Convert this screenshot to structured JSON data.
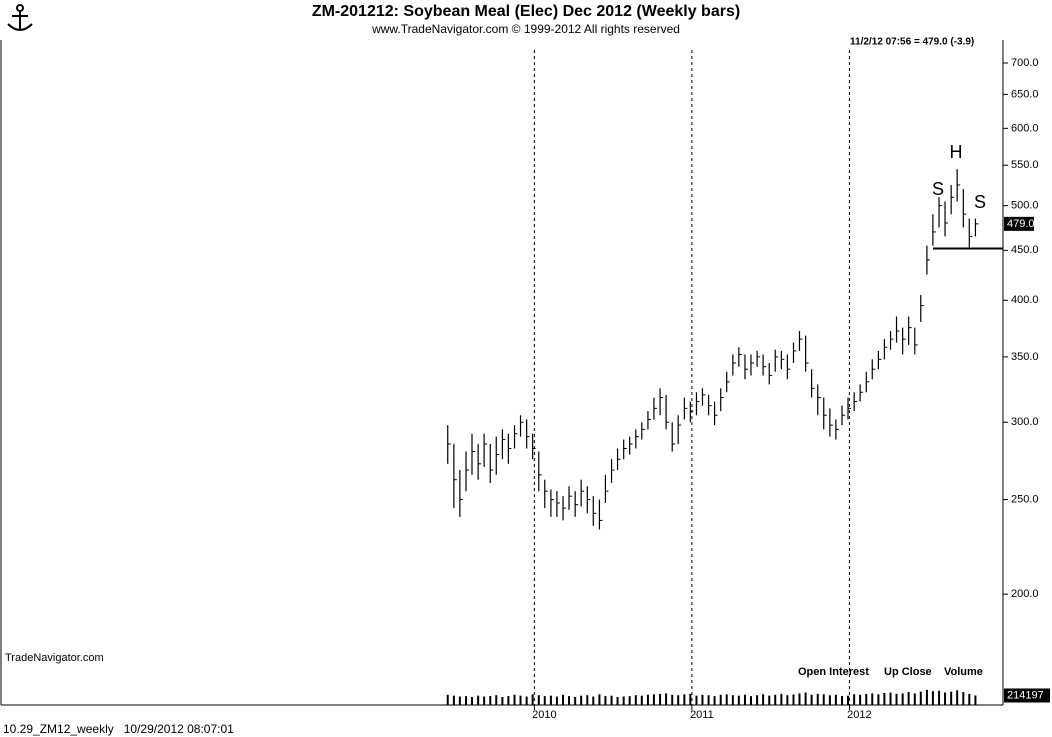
{
  "chart_data": {
    "type": "ohlc",
    "title": "ZM-201212:  Soybean Meal (Elec) Dec 2012  (Weekly bars)",
    "subtitle": "www.TradeNavigator.com © 1999-2012 All rights reserved",
    "quote": "11/2/12 07:56 = 479.0 (-3.9)",
    "last_price_label": "479.0",
    "watermark": "TradeNavigator.com",
    "footer": "10.29_ZM12_weekly   10/29/2012 08:07:01",
    "legend": [
      "Open Interest",
      "Up Close",
      "Volume"
    ],
    "annotations": [
      "S",
      "H",
      "S"
    ],
    "neckline": 452,
    "log_scale": true,
    "x_grid": true,
    "color": "#000000",
    "xlim": [
      2006.614,
      2012.975
    ],
    "xticks": [
      2010,
      2011,
      2012
    ],
    "ylim": [
      154,
      739
    ],
    "yticks": [
      {
        "value": 200,
        "label": "200.0"
      },
      {
        "value": 250,
        "label": "250.0"
      },
      {
        "value": 300,
        "label": "300.0"
      },
      {
        "value": 350,
        "label": "350.0"
      },
      {
        "value": 400,
        "label": "400.0"
      },
      {
        "value": 450,
        "label": "450.0"
      },
      {
        "value": 500,
        "label": "500.0"
      },
      {
        "value": 550,
        "label": "550.0"
      },
      {
        "value": 600,
        "label": "600.0"
      },
      {
        "value": 650,
        "label": "650.0"
      },
      {
        "value": 700,
        "label": "700.0"
      }
    ],
    "x": [
      2009.45,
      2009.489,
      2009.527,
      2009.566,
      2009.604,
      2009.643,
      2009.681,
      2009.72,
      2009.758,
      2009.797,
      2009.835,
      2009.874,
      2009.912,
      2009.951,
      2009.989,
      2010.028,
      2010.066,
      2010.105,
      2010.143,
      2010.182,
      2010.22,
      2010.259,
      2010.297,
      2010.336,
      2010.374,
      2010.413,
      2010.451,
      2010.49,
      2010.528,
      2010.567,
      2010.605,
      2010.644,
      2010.682,
      2010.721,
      2010.759,
      2010.798,
      2010.836,
      2010.875,
      2010.913,
      2010.952,
      2010.99,
      2011.029,
      2011.067,
      2011.106,
      2011.144,
      2011.183,
      2011.221,
      2011.26,
      2011.298,
      2011.337,
      2011.375,
      2011.414,
      2011.452,
      2011.491,
      2011.529,
      2011.568,
      2011.606,
      2011.645,
      2011.683,
      2011.722,
      2011.76,
      2011.799,
      2011.837,
      2011.876,
      2011.914,
      2011.953,
      2011.991,
      2012.03,
      2012.068,
      2012.107,
      2012.145,
      2012.184,
      2012.222,
      2012.261,
      2012.299,
      2012.338,
      2012.376,
      2012.415,
      2012.453,
      2012.492,
      2012.53,
      2012.569,
      2012.607,
      2012.646,
      2012.684,
      2012.723,
      2012.761,
      2012.8
    ],
    "high": [
      298,
      285,
      268,
      280,
      292,
      285,
      292,
      285,
      290,
      295,
      292,
      298,
      305,
      302,
      292,
      280,
      262,
      256,
      255,
      252,
      258,
      255,
      262,
      258,
      252,
      250,
      265,
      275,
      282,
      288,
      290,
      295,
      300,
      308,
      318,
      325,
      320,
      300,
      305,
      318,
      315,
      322,
      325,
      320,
      315,
      325,
      338,
      352,
      358,
      352,
      352,
      355,
      352,
      345,
      356,
      355,
      352,
      362,
      372,
      368,
      340,
      328,
      318,
      310,
      302,
      312,
      318,
      322,
      328,
      338,
      348,
      355,
      365,
      372,
      385,
      375,
      385,
      375,
      405,
      455,
      490,
      510,
      505,
      525,
      545,
      520,
      485,
      485
    ],
    "low": [
      272,
      245,
      240,
      255,
      265,
      262,
      270,
      260,
      265,
      275,
      272,
      282,
      290,
      282,
      275,
      255,
      245,
      240,
      240,
      238,
      244,
      240,
      246,
      242,
      235,
      233,
      248,
      260,
      268,
      275,
      278,
      282,
      288,
      295,
      302,
      305,
      295,
      280,
      285,
      302,
      300,
      305,
      312,
      305,
      298,
      308,
      322,
      335,
      342,
      332,
      335,
      342,
      335,
      328,
      338,
      340,
      332,
      345,
      355,
      338,
      318,
      305,
      295,
      290,
      288,
      298,
      302,
      308,
      315,
      322,
      332,
      340,
      348,
      356,
      362,
      352,
      360,
      352,
      380,
      425,
      455,
      475,
      465,
      490,
      505,
      475,
      452,
      465
    ],
    "close": [
      285,
      262,
      250,
      268,
      280,
      272,
      285,
      268,
      278,
      288,
      282,
      292,
      300,
      290,
      282,
      265,
      255,
      250,
      248,
      245,
      252,
      247,
      255,
      250,
      242,
      238,
      255,
      268,
      275,
      282,
      285,
      290,
      295,
      302,
      310,
      318,
      300,
      285,
      298,
      310,
      308,
      315,
      320,
      312,
      305,
      318,
      330,
      345,
      352,
      340,
      345,
      350,
      342,
      335,
      350,
      348,
      340,
      355,
      365,
      345,
      325,
      318,
      305,
      298,
      295,
      305,
      310,
      315,
      322,
      330,
      340,
      348,
      358,
      365,
      372,
      365,
      375,
      360,
      395,
      440,
      470,
      500,
      480,
      510,
      525,
      490,
      465,
      479
    ],
    "volume": [
      230000,
      210000,
      190000,
      200000,
      180000,
      210000,
      190000,
      200000,
      220000,
      180000,
      200000,
      230000,
      210000,
      190000,
      240000,
      220000,
      200000,
      210000,
      190000,
      230000,
      200000,
      180000,
      210000,
      220000,
      190000,
      240000,
      200000,
      210000,
      180000,
      190000,
      200000,
      220000,
      210000,
      230000,
      240000,
      250000,
      260000,
      230000,
      220000,
      240000,
      250000,
      210000,
      230000,
      220000,
      200000,
      230000,
      240000,
      220000,
      210000,
      230000,
      200000,
      220000,
      240000,
      210000,
      230000,
      250000,
      220000,
      240000,
      260000,
      280000,
      230000,
      250000,
      240000,
      220000,
      230000,
      200000,
      210000,
      240000,
      230000,
      250000,
      260000,
      240000,
      270000,
      280000,
      250000,
      260000,
      290000,
      260000,
      300000,
      340000,
      310000,
      320000,
      280000,
      300000,
      330000,
      290000,
      250000,
      214197
    ],
    "volume_lim": [
      0,
      450000
    ],
    "volume_ticks": [
      214197
    ]
  }
}
